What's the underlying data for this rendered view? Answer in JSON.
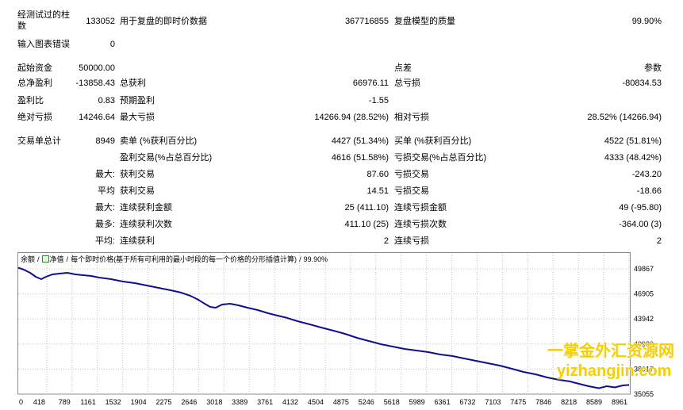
{
  "report": {
    "bars_tested": {
      "label": "经测试过的柱数",
      "value": "133052"
    },
    "ticks_modelled": {
      "label": "用于复盘的即时价数据",
      "value": "367716855"
    },
    "modelling_quality": {
      "label": "复盘模型的质量",
      "value": "99.90%"
    },
    "mismatched_errors": {
      "label": "输入图表错误",
      "value": "0"
    },
    "initial_deposit": {
      "label": "起始资金",
      "value": "50000.00"
    },
    "spread": {
      "label": "点差"
    },
    "parameters": {
      "label": "参数"
    },
    "total_net_profit": {
      "label": "总净盈利",
      "value": "-13858.43"
    },
    "gross_profit": {
      "label": "总获利",
      "value": "66976.11"
    },
    "gross_loss": {
      "label": "总亏损",
      "value": "-80834.53"
    },
    "profit_factor": {
      "label": "盈利比",
      "value": "0.83"
    },
    "expected_payoff": {
      "label": "预期盈利",
      "value": "-1.55"
    },
    "absolute_drawdown": {
      "label": "绝对亏损",
      "value": "14246.64"
    },
    "maximal_drawdown": {
      "label": "最大亏损",
      "value": "14266.94 (28.52%)"
    },
    "relative_drawdown": {
      "label": "相对亏损",
      "value": "28.52% (14266.94)"
    },
    "total_trades": {
      "label": "交易单总计",
      "value": "8949"
    },
    "short_positions": {
      "label": "卖单 (%获利百分比)",
      "value": "4427 (51.34%)"
    },
    "long_positions": {
      "label": "买单 (%获利百分比)",
      "value": "4522 (51.81%)"
    },
    "profit_trades": {
      "label": "盈利交易(%占总百分比)",
      "value": "4616 (51.58%)"
    },
    "loss_trades": {
      "label": "亏损交易(%占总百分比)",
      "value": "4333 (48.42%)"
    },
    "largest": {
      "label": "最大:",
      "profit_label": "获利交易",
      "profit": "87.60",
      "loss_label": "亏损交易",
      "loss": "-243.20"
    },
    "average": {
      "label": "平均",
      "profit_label": "获利交易",
      "profit": "14.51",
      "loss_label": "亏损交易",
      "loss": "-18.66"
    },
    "max_consecutive": {
      "label": "最大:",
      "profit_label": "连续获利金额",
      "profit": "25 (411.10)",
      "loss_label": "连续亏损金额",
      "loss": "49 (-95.80)"
    },
    "maximal_consecutive": {
      "label": "最多:",
      "profit_label": "连续获利次数",
      "profit": "411.10 (25)",
      "loss_label": "连续亏损次数",
      "loss": "-364.00 (3)"
    },
    "average_consecutive": {
      "label": "平均:",
      "profit_label": "连续获利",
      "profit": "2",
      "loss_label": "连续亏损",
      "loss": "2"
    }
  },
  "chart": {
    "legend": {
      "separator": "/",
      "equity": "净值",
      "method": "每个即时价格(基于所有可利用的最小时段的每一个价格的分形插值计算)",
      "quality": "99.90%"
    },
    "icons": {
      "equity": "equity-icon"
    },
    "colors": {
      "balance_line": "#10108c",
      "grid": "#c4c4c4",
      "frame": "#8c8c8c"
    }
  },
  "chart_data": {
    "type": "line",
    "xlim": [
      0,
      8961
    ],
    "ylim": [
      35055,
      51742
    ],
    "grid": true,
    "legend": "top-left",
    "xticks": [
      0,
      418,
      789,
      1161,
      1532,
      1904,
      2275,
      2646,
      3018,
      3389,
      3761,
      4132,
      4504,
      4875,
      5246,
      5618,
      5989,
      6361,
      6732,
      7103,
      7475,
      7846,
      8218,
      8589,
      8961
    ],
    "yticks": [
      49867,
      46905,
      43942,
      40980,
      38017,
      35055
    ],
    "x": [
      0,
      81,
      175,
      256,
      337,
      407,
      500,
      605,
      721,
      838,
      954,
      1071,
      1187,
      1362,
      1536,
      1711,
      1885,
      2060,
      2234,
      2386,
      2525,
      2642,
      2735,
      2816,
      2898,
      2991,
      3107,
      3224,
      3363,
      3515,
      3666,
      3805,
      3945,
      4096,
      4271,
      4445,
      4620,
      4795,
      4969,
      5144,
      5318,
      5493,
      5667,
      5842,
      6017,
      6191,
      6366,
      6540,
      6715,
      6889,
      7064,
      7238,
      7413,
      7588,
      7762,
      7937,
      8088,
      8228,
      8367,
      8519,
      8635,
      8751,
      8868,
      8961
    ],
    "series": [
      {
        "name": "余额",
        "values": [
          50000,
          49770,
          49400,
          48930,
          48650,
          48930,
          49210,
          49300,
          49400,
          49210,
          49120,
          49020,
          48840,
          48650,
          48370,
          48180,
          47900,
          47620,
          47340,
          47060,
          46680,
          46210,
          45740,
          45370,
          45270,
          45650,
          45740,
          45560,
          45270,
          44990,
          44620,
          44340,
          44060,
          43680,
          43310,
          42930,
          42560,
          42180,
          41710,
          41340,
          40960,
          40680,
          40400,
          40210,
          40020,
          39740,
          39560,
          39270,
          38990,
          38710,
          38430,
          38060,
          37680,
          37400,
          37020,
          36740,
          36560,
          36270,
          35990,
          35760,
          35990,
          35850,
          36090,
          36142
        ]
      }
    ]
  },
  "watermark": {
    "line1": "一掌金外汇资源网",
    "line2": "yizhangjin.com",
    "color": "#f5cf00"
  }
}
